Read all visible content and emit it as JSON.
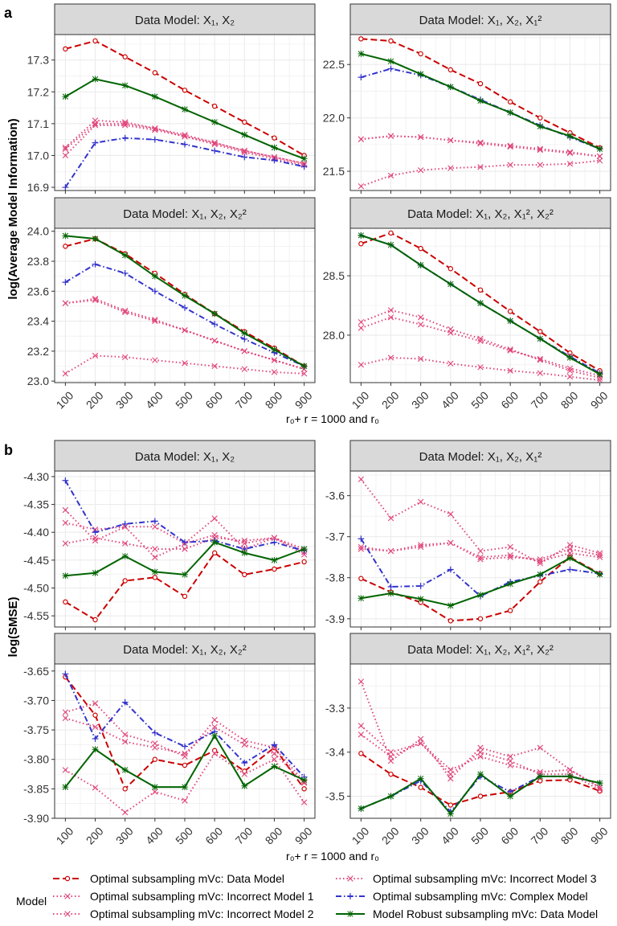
{
  "panel_tags": [
    "a",
    "b"
  ],
  "colors": {
    "data_model": "#cc0000",
    "incorrect1": "#e0457b",
    "incorrect2": "#e0457b",
    "incorrect3": "#e0457b",
    "complex": "#3333cc",
    "robust": "#006400",
    "strip": "#d9d9d9",
    "grid": "#ebebeb"
  },
  "legend": {
    "title": "Model",
    "entries": [
      {
        "key": "data_model",
        "label": "Optimal subsampling mVc: Data Model"
      },
      {
        "key": "incorrect1",
        "label": "Optimal subsampling mVc: Incorrect Model 1"
      },
      {
        "key": "incorrect2",
        "label": "Optimal subsampling mVc: Incorrect Model 2"
      },
      {
        "key": "incorrect3",
        "label": "Optimal subsampling mVc: Incorrect Model 3"
      },
      {
        "key": "complex",
        "label": "Optimal subsampling mVc: Complex Model"
      },
      {
        "key": "robust",
        "label": "Model Robust subsampling mVc: Data Model"
      }
    ]
  },
  "chart_data": [
    {
      "type": "line",
      "group": "a",
      "title": "Data Model: X₁, X₂",
      "ylabel": "log(Average Model Information)",
      "xlabel": "r₀+ r = 1000 and r₀",
      "x": [
        100,
        200,
        300,
        400,
        500,
        600,
        700,
        800,
        900
      ],
      "ylim": [
        16.89,
        17.38
      ],
      "yticks": [
        16.9,
        17.0,
        17.1,
        17.2,
        17.3
      ],
      "series": [
        {
          "key": "data_model",
          "values": [
            17.335,
            17.36,
            17.31,
            17.26,
            17.205,
            17.155,
            17.105,
            17.055,
            17.0
          ]
        },
        {
          "key": "incorrect1",
          "values": [
            17.025,
            17.11,
            17.105,
            17.085,
            17.065,
            17.04,
            17.015,
            16.995,
            16.975
          ]
        },
        {
          "key": "incorrect2",
          "values": [
            17.0,
            17.095,
            17.095,
            17.08,
            17.06,
            17.035,
            17.01,
            16.99,
            16.97
          ]
        },
        {
          "key": "incorrect3",
          "values": [
            17.02,
            17.1,
            17.1,
            17.085,
            17.06,
            17.04,
            17.015,
            16.995,
            16.975
          ]
        },
        {
          "key": "complex",
          "values": [
            16.9,
            17.04,
            17.055,
            17.05,
            17.035,
            17.015,
            16.995,
            16.985,
            16.965
          ]
        },
        {
          "key": "robust",
          "values": [
            17.185,
            17.24,
            17.22,
            17.185,
            17.145,
            17.105,
            17.065,
            17.025,
            16.99
          ]
        }
      ]
    },
    {
      "type": "line",
      "group": "a",
      "title": "Data Model: X₁, X₂, X₁²",
      "x": [
        100,
        200,
        300,
        400,
        500,
        600,
        700,
        800,
        900
      ],
      "ylim": [
        21.32,
        22.78
      ],
      "yticks": [
        21.5,
        22.0,
        22.5
      ],
      "series": [
        {
          "key": "data_model",
          "values": [
            22.74,
            22.72,
            22.6,
            22.45,
            22.32,
            22.15,
            22.0,
            21.86,
            21.72
          ]
        },
        {
          "key": "incorrect1",
          "values": [
            21.8,
            21.83,
            21.82,
            21.79,
            21.77,
            21.74,
            21.71,
            21.68,
            21.64
          ]
        },
        {
          "key": "incorrect2",
          "values": [
            21.36,
            21.46,
            21.51,
            21.53,
            21.54,
            21.56,
            21.56,
            21.57,
            21.6
          ]
        },
        {
          "key": "incorrect3",
          "values": [
            21.8,
            21.83,
            21.82,
            21.79,
            21.76,
            21.73,
            21.7,
            21.67,
            21.64
          ]
        },
        {
          "key": "complex",
          "values": [
            22.38,
            22.46,
            22.4,
            22.29,
            22.17,
            22.05,
            21.93,
            21.82,
            21.71
          ]
        },
        {
          "key": "robust",
          "values": [
            22.6,
            22.53,
            22.41,
            22.29,
            22.16,
            22.05,
            21.92,
            21.83,
            21.71
          ]
        }
      ]
    },
    {
      "type": "line",
      "group": "a",
      "title": "Data Model: X₁, X₂, X₂²",
      "x": [
        100,
        200,
        300,
        400,
        500,
        600,
        700,
        800,
        900
      ],
      "ylim": [
        22.99,
        24.02
      ],
      "yticks": [
        23.0,
        23.2,
        23.4,
        23.6,
        23.8,
        24.0
      ],
      "series": [
        {
          "key": "data_model",
          "values": [
            23.9,
            23.95,
            23.85,
            23.72,
            23.58,
            23.45,
            23.33,
            23.22,
            23.1
          ]
        },
        {
          "key": "incorrect1",
          "values": [
            23.52,
            23.54,
            23.46,
            23.4,
            23.34,
            23.27,
            23.2,
            23.14,
            23.08
          ]
        },
        {
          "key": "incorrect2",
          "values": [
            23.05,
            23.17,
            23.16,
            23.14,
            23.12,
            23.1,
            23.08,
            23.06,
            23.05
          ]
        },
        {
          "key": "incorrect3",
          "values": [
            23.52,
            23.55,
            23.47,
            23.41,
            23.34,
            23.27,
            23.2,
            23.14,
            23.08
          ]
        },
        {
          "key": "complex",
          "values": [
            23.66,
            23.78,
            23.72,
            23.6,
            23.49,
            23.38,
            23.28,
            23.19,
            23.1
          ]
        },
        {
          "key": "robust",
          "values": [
            23.97,
            23.95,
            23.84,
            23.7,
            23.57,
            23.45,
            23.32,
            23.21,
            23.1
          ]
        }
      ]
    },
    {
      "type": "line",
      "group": "a",
      "title": "Data Model: X₁, X₂, X₁², X₂²",
      "x": [
        100,
        200,
        300,
        400,
        500,
        600,
        700,
        800,
        900
      ],
      "ylim": [
        27.6,
        28.9
      ],
      "yticks": [
        28.0,
        28.5
      ],
      "series": [
        {
          "key": "data_model",
          "values": [
            28.77,
            28.86,
            28.73,
            28.56,
            28.38,
            28.2,
            28.03,
            27.85,
            27.7
          ]
        },
        {
          "key": "incorrect1",
          "values": [
            28.06,
            28.15,
            28.09,
            28.02,
            27.95,
            27.87,
            27.8,
            27.72,
            27.66
          ]
        },
        {
          "key": "incorrect2",
          "values": [
            27.75,
            27.81,
            27.8,
            27.76,
            27.73,
            27.7,
            27.68,
            27.65,
            27.62
          ]
        },
        {
          "key": "incorrect3",
          "values": [
            28.11,
            28.21,
            28.15,
            28.05,
            27.97,
            27.88,
            27.79,
            27.7,
            27.64
          ]
        },
        {
          "key": "complex",
          "values": [
            28.84,
            28.76,
            28.59,
            28.43,
            28.27,
            28.12,
            27.97,
            27.82,
            27.68
          ]
        },
        {
          "key": "robust",
          "values": [
            28.84,
            28.76,
            28.59,
            28.43,
            28.27,
            28.12,
            27.97,
            27.81,
            27.67
          ]
        }
      ]
    },
    {
      "type": "line",
      "group": "b",
      "title": "Data Model: X₁, X₂",
      "ylabel": "log(SMSE)",
      "xlabel": "r₀+ r = 1000 and r₀",
      "x": [
        100,
        200,
        300,
        400,
        500,
        600,
        700,
        800,
        900
      ],
      "ylim": [
        -4.57,
        -4.29
      ],
      "yticks": [
        -4.55,
        -4.5,
        -4.45,
        -4.4,
        -4.35,
        -4.3
      ],
      "series": [
        {
          "key": "data_model",
          "values": [
            -4.525,
            -4.557,
            -4.487,
            -4.481,
            -4.515,
            -4.437,
            -4.476,
            -4.466,
            -4.453
          ]
        },
        {
          "key": "incorrect1",
          "values": [
            -4.36,
            -4.415,
            -4.39,
            -4.39,
            -4.42,
            -4.375,
            -4.43,
            -4.41,
            -4.43
          ]
        },
        {
          "key": "incorrect2",
          "values": [
            -4.383,
            -4.395,
            -4.39,
            -4.445,
            -4.42,
            -4.405,
            -4.42,
            -4.41,
            -4.44
          ]
        },
        {
          "key": "incorrect3",
          "values": [
            -4.42,
            -4.41,
            -4.42,
            -4.43,
            -4.43,
            -4.41,
            -4.415,
            -4.41,
            -4.435
          ]
        },
        {
          "key": "complex",
          "values": [
            -4.307,
            -4.4,
            -4.385,
            -4.38,
            -4.418,
            -4.415,
            -4.43,
            -4.418,
            -4.433
          ]
        },
        {
          "key": "robust",
          "values": [
            -4.478,
            -4.473,
            -4.443,
            -4.471,
            -4.476,
            -4.418,
            -4.437,
            -4.45,
            -4.43
          ]
        }
      ]
    },
    {
      "type": "line",
      "group": "b",
      "title": "Data Model: X₁, X₂, X₁²",
      "x": [
        100,
        200,
        300,
        400,
        500,
        600,
        700,
        800,
        900
      ],
      "ylim": [
        -3.92,
        -3.54
      ],
      "yticks": [
        -3.9,
        -3.8,
        -3.7,
        -3.6
      ],
      "series": [
        {
          "key": "data_model",
          "values": [
            -3.802,
            -3.835,
            -3.86,
            -3.905,
            -3.9,
            -3.88,
            -3.81,
            -3.75,
            -3.79
          ]
        },
        {
          "key": "incorrect1",
          "values": [
            -3.56,
            -3.655,
            -3.615,
            -3.645,
            -3.735,
            -3.725,
            -3.765,
            -3.72,
            -3.74
          ]
        },
        {
          "key": "incorrect2",
          "values": [
            -3.725,
            -3.735,
            -3.725,
            -3.715,
            -3.755,
            -3.75,
            -3.755,
            -3.73,
            -3.745
          ]
        },
        {
          "key": "incorrect3",
          "values": [
            -3.73,
            -3.735,
            -3.72,
            -3.715,
            -3.75,
            -3.745,
            -3.76,
            -3.74,
            -3.75
          ]
        },
        {
          "key": "complex",
          "values": [
            -3.705,
            -3.822,
            -3.82,
            -3.78,
            -3.845,
            -3.81,
            -3.795,
            -3.78,
            -3.79
          ]
        },
        {
          "key": "robust",
          "values": [
            -3.85,
            -3.838,
            -3.852,
            -3.868,
            -3.842,
            -3.815,
            -3.792,
            -3.752,
            -3.792
          ]
        }
      ]
    },
    {
      "type": "line",
      "group": "b",
      "title": "Data Model: X₁, X₂, X₂²",
      "x": [
        100,
        200,
        300,
        400,
        500,
        600,
        700,
        800,
        900
      ],
      "ylim": [
        -3.9,
        -3.638
      ],
      "yticks": [
        -3.9,
        -3.85,
        -3.8,
        -3.75,
        -3.7,
        -3.65
      ],
      "series": [
        {
          "key": "data_model",
          "values": [
            -3.66,
            -3.725,
            -3.85,
            -3.8,
            -3.81,
            -3.785,
            -3.82,
            -3.78,
            -3.85
          ]
        },
        {
          "key": "incorrect1",
          "values": [
            -3.72,
            -3.705,
            -3.758,
            -3.773,
            -3.795,
            -3.733,
            -3.768,
            -3.78,
            -3.838
          ]
        },
        {
          "key": "incorrect2",
          "values": [
            -3.818,
            -3.848,
            -3.89,
            -3.855,
            -3.87,
            -3.79,
            -3.825,
            -3.8,
            -3.873
          ]
        },
        {
          "key": "incorrect3",
          "values": [
            -3.73,
            -3.745,
            -3.77,
            -3.78,
            -3.79,
            -3.745,
            -3.775,
            -3.79,
            -3.84
          ]
        },
        {
          "key": "complex",
          "values": [
            -3.655,
            -3.765,
            -3.703,
            -3.755,
            -3.778,
            -3.753,
            -3.806,
            -3.775,
            -3.83
          ]
        },
        {
          "key": "robust",
          "values": [
            -3.847,
            -3.783,
            -3.818,
            -3.847,
            -3.847,
            -3.76,
            -3.845,
            -3.812,
            -3.835
          ]
        }
      ]
    },
    {
      "type": "line",
      "group": "b",
      "title": "Data Model: X₁, X₂, X₁², X₂²",
      "x": [
        100,
        200,
        300,
        400,
        500,
        600,
        700,
        800,
        900
      ],
      "ylim": [
        -3.55,
        -3.2
      ],
      "yticks": [
        -3.5,
        -3.4,
        -3.3
      ],
      "series": [
        {
          "key": "data_model",
          "values": [
            -3.403,
            -3.45,
            -3.48,
            -3.52,
            -3.5,
            -3.49,
            -3.465,
            -3.463,
            -3.488
          ]
        },
        {
          "key": "incorrect1",
          "values": [
            -3.24,
            -3.42,
            -3.37,
            -3.46,
            -3.39,
            -3.41,
            -3.39,
            -3.44,
            -3.48
          ]
        },
        {
          "key": "incorrect2",
          "values": [
            -3.36,
            -3.41,
            -3.38,
            -3.45,
            -3.4,
            -3.42,
            -3.45,
            -3.45,
            -3.485
          ]
        },
        {
          "key": "incorrect3",
          "values": [
            -3.34,
            -3.4,
            -3.38,
            -3.44,
            -3.41,
            -3.43,
            -3.445,
            -3.44,
            -3.48
          ]
        },
        {
          "key": "complex",
          "values": [
            -3.528,
            -3.5,
            -3.465,
            -3.535,
            -3.455,
            -3.49,
            -3.455,
            -3.455,
            -3.47
          ]
        },
        {
          "key": "robust",
          "values": [
            -3.528,
            -3.5,
            -3.46,
            -3.54,
            -3.45,
            -3.5,
            -3.455,
            -3.455,
            -3.47
          ]
        }
      ]
    }
  ]
}
